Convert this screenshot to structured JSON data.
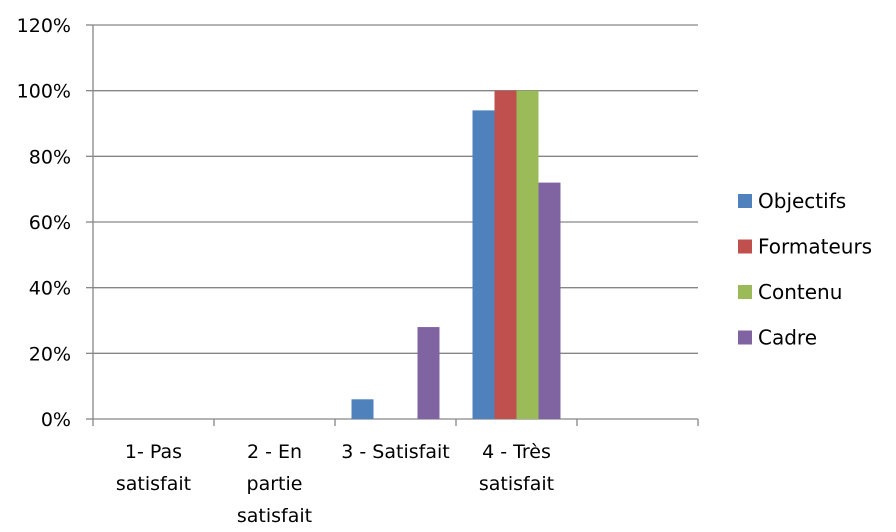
{
  "chart_data": {
    "type": "bar",
    "categories": [
      [
        "1- Pas",
        "satisfait"
      ],
      [
        "2 - En",
        "partie",
        "satisfait"
      ],
      [
        "3 - Satisfait"
      ],
      [
        "4 - Très",
        "satisfait"
      ],
      [
        ""
      ]
    ],
    "series": [
      {
        "name": "Objectifs",
        "color": "#4f81bd",
        "values": [
          0,
          0,
          0.06,
          0.94,
          0
        ]
      },
      {
        "name": "Formateurs",
        "color": "#c0504d",
        "values": [
          0,
          0,
          0,
          1.0,
          0
        ]
      },
      {
        "name": "Contenu",
        "color": "#9bbb59",
        "values": [
          0,
          0,
          0,
          1.0,
          0
        ]
      },
      {
        "name": "Cadre",
        "color": "#8064a2",
        "values": [
          0,
          0,
          0.28,
          0.72,
          0
        ]
      }
    ],
    "y_ticks": [
      "0%",
      "20%",
      "40%",
      "60%",
      "80%",
      "100%",
      "120%"
    ],
    "ylim": [
      0,
      1.2
    ],
    "grid": true,
    "legend": "right",
    "title": "",
    "xlabel": "",
    "ylabel": ""
  }
}
